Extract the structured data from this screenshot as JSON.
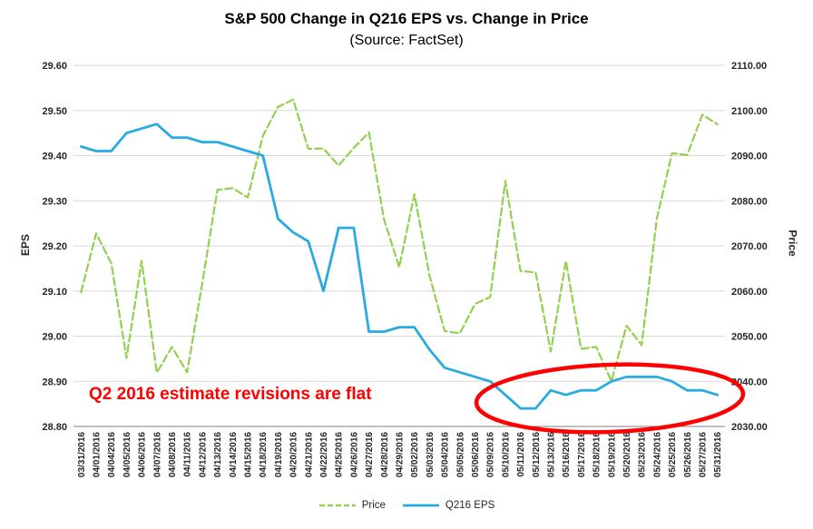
{
  "annotation": {
    "text": "Q2 2016 estimate revisions are flat",
    "color": "#FF0000"
  },
  "chart_data": {
    "type": "line",
    "title": "S&P 500 Change in Q216 EPS vs. Change in Price",
    "subtitle": "(Source: FactSet)",
    "grid": true,
    "legend_position": "bottom",
    "categories": [
      "03/31/2016",
      "04/01/2016",
      "04/04/2016",
      "04/05/2016",
      "04/06/2016",
      "04/07/2016",
      "04/08/2016",
      "04/11/2016",
      "04/12/2016",
      "04/13/2016",
      "04/14/2016",
      "04/15/2016",
      "04/18/2016",
      "04/19/2016",
      "04/20/2016",
      "04/21/2016",
      "04/22/2016",
      "04/25/2016",
      "04/26/2016",
      "04/27/2016",
      "04/28/2016",
      "04/29/2016",
      "05/02/2016",
      "05/03/2016",
      "05/04/2016",
      "05/05/2016",
      "05/06/2016",
      "05/09/2016",
      "05/10/2016",
      "05/11/2016",
      "05/12/2016",
      "05/13/2016",
      "05/16/2016",
      "05/17/2016",
      "05/18/2016",
      "05/19/2016",
      "05/20/2016",
      "05/23/2016",
      "05/24/2016",
      "05/25/2016",
      "05/26/2016",
      "05/27/2016",
      "05/31/2016"
    ],
    "left_axis": {
      "label": "EPS",
      "min": 28.8,
      "max": 29.6,
      "step": 0.1
    },
    "right_axis": {
      "label": "Price",
      "min": 2030.0,
      "max": 2110.0,
      "step": 10.0
    },
    "series": [
      {
        "name": "Price",
        "axis": "right",
        "style": "dashed",
        "color": "#92D050",
        "values": [
          2059.74,
          2072.78,
          2066.13,
          2045.17,
          2066.66,
          2041.91,
          2047.6,
          2041.99,
          2061.72,
          2082.42,
          2082.78,
          2080.73,
          2094.34,
          2100.8,
          2102.4,
          2091.48,
          2091.58,
          2087.79,
          2091.7,
          2095.15,
          2075.81,
          2065.3,
          2081.43,
          2063.37,
          2051.12,
          2050.63,
          2057.14,
          2058.69,
          2084.39,
          2064.46,
          2064.11,
          2046.61,
          2066.66,
          2047.21,
          2047.63,
          2040.04,
          2052.32,
          2048.04,
          2076.06,
          2090.54,
          2090.1,
          2099.06,
          2096.96
        ]
      },
      {
        "name": "Q216 EPS",
        "axis": "left",
        "style": "solid",
        "color": "#29ABE2",
        "values": [
          29.42,
          29.41,
          29.41,
          29.45,
          29.46,
          29.47,
          29.44,
          29.44,
          29.43,
          29.43,
          29.42,
          29.41,
          29.4,
          29.26,
          29.23,
          29.21,
          29.1,
          29.24,
          29.24,
          29.01,
          29.01,
          29.02,
          29.02,
          28.97,
          28.93,
          28.92,
          28.91,
          28.9,
          28.87,
          28.84,
          28.84,
          28.88,
          28.87,
          28.88,
          28.88,
          28.9,
          28.91,
          28.91,
          28.91,
          28.9,
          28.88,
          28.88,
          28.87
        ]
      }
    ]
  }
}
